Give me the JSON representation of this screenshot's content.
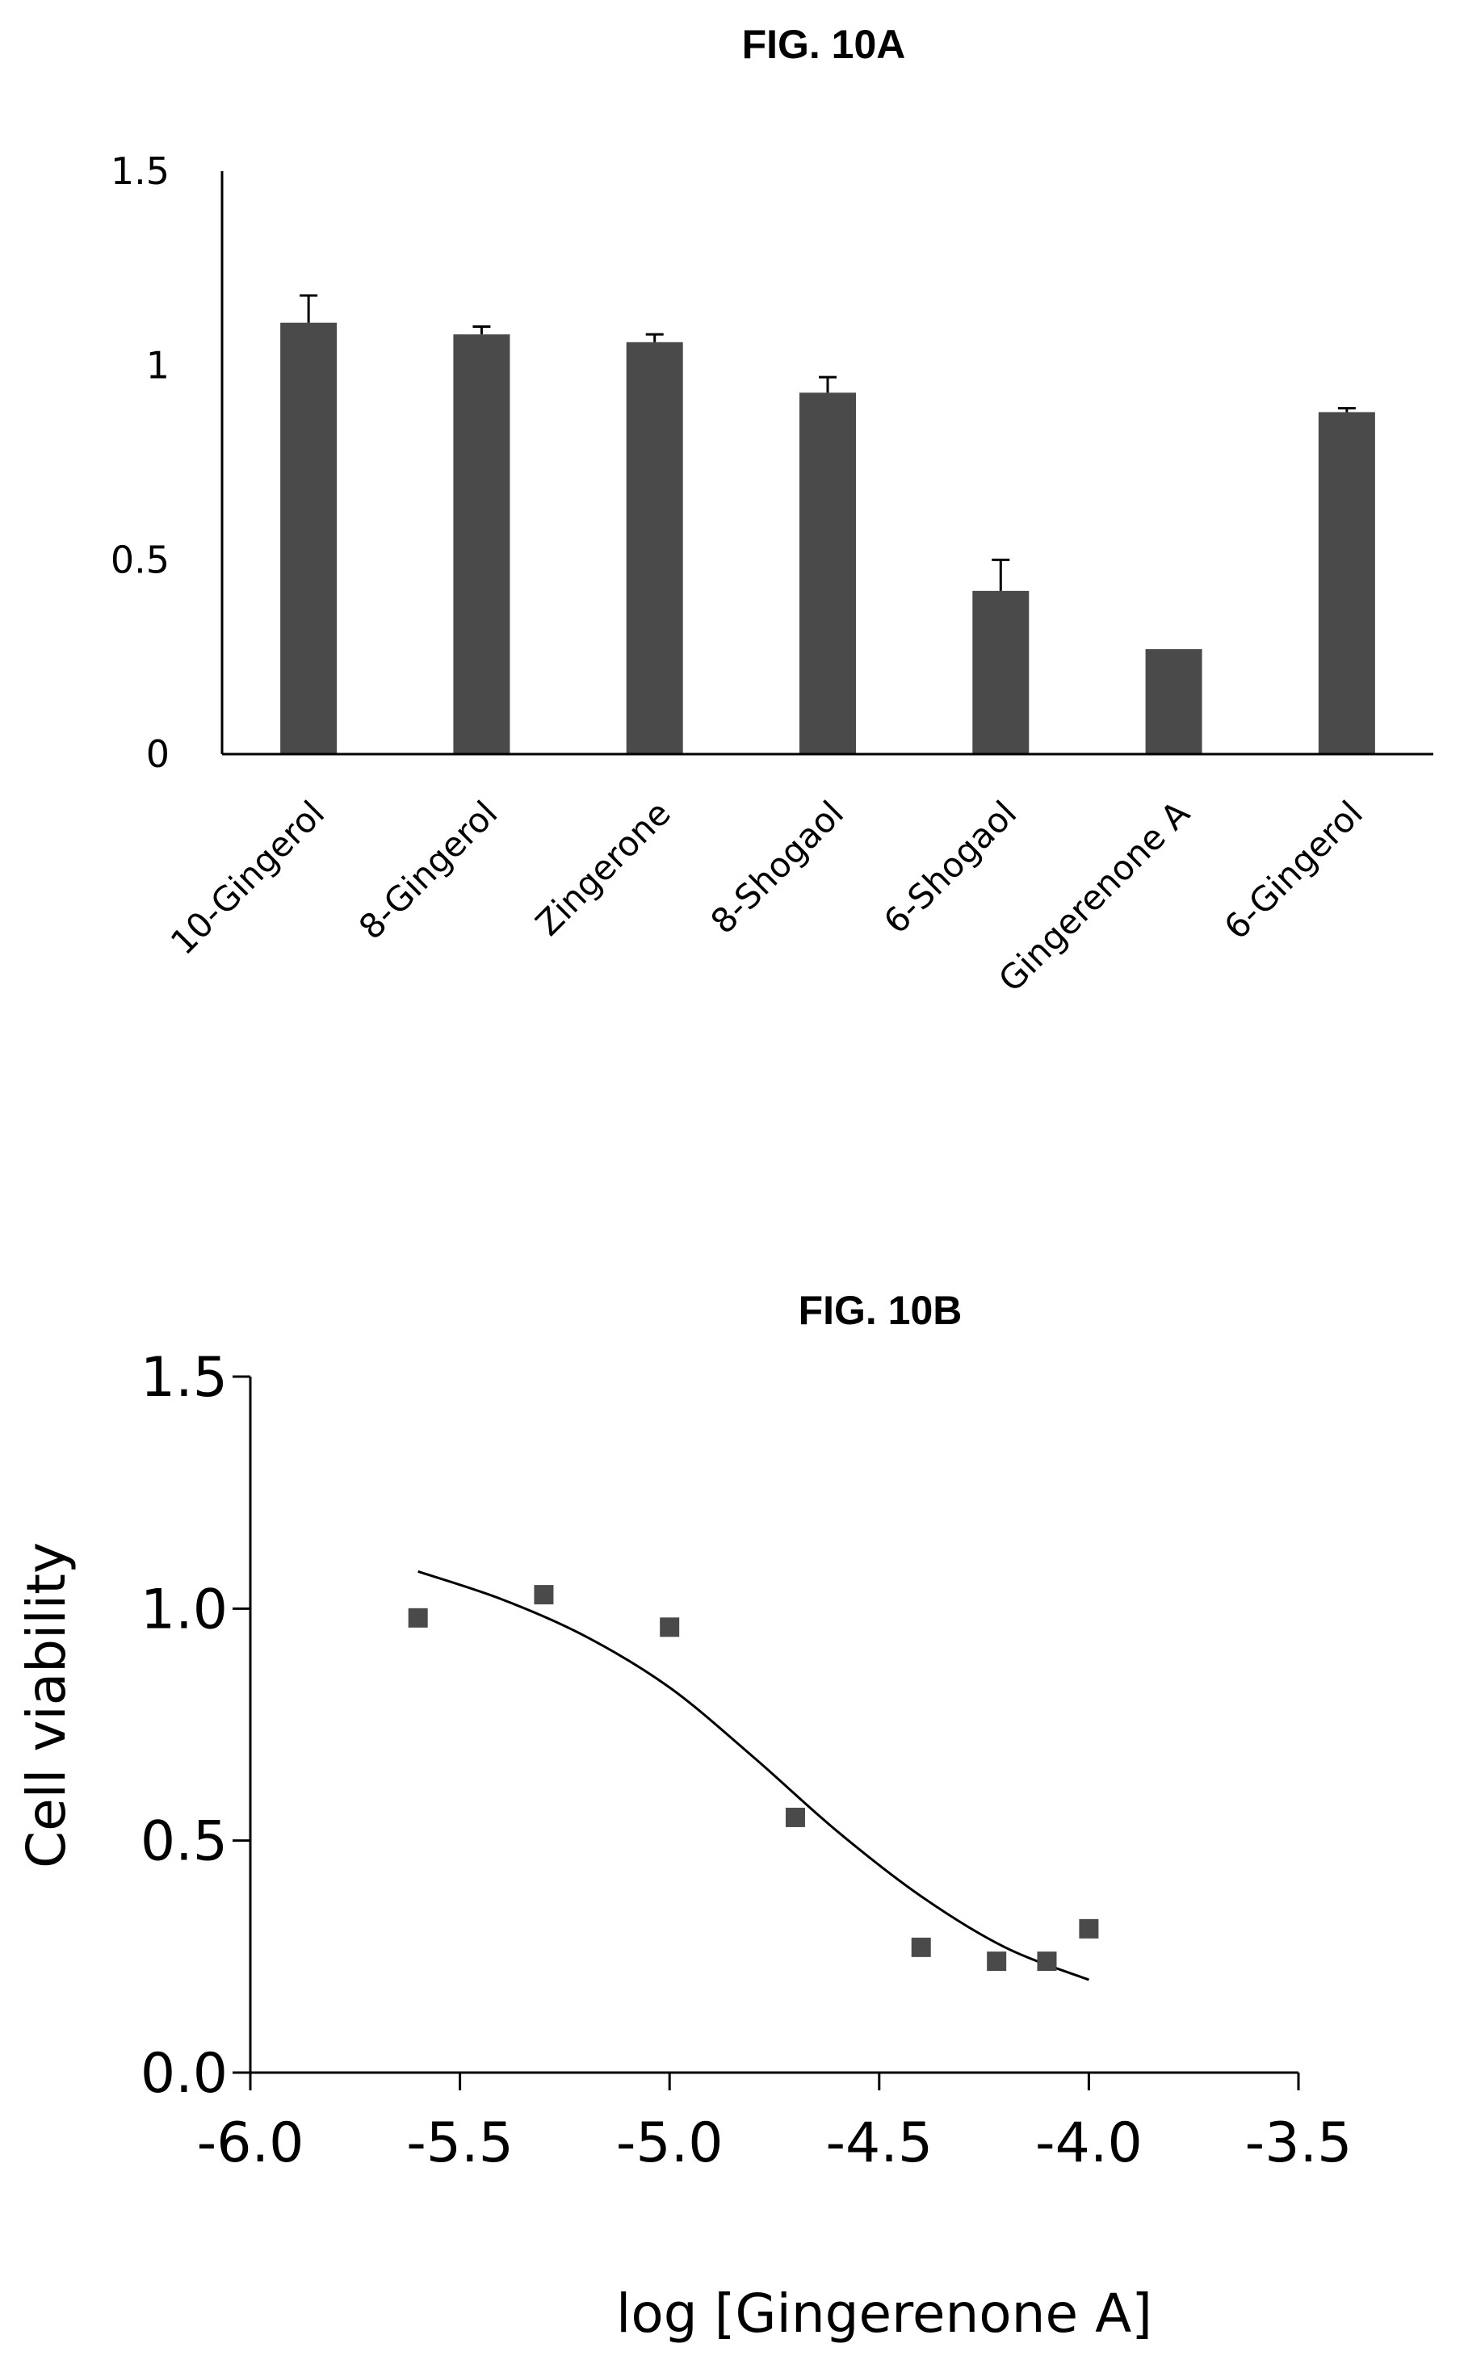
{
  "chart_data": [
    {
      "type": "bar",
      "title": "FIG. 10A",
      "xlabel": "",
      "ylabel": "",
      "ylim": [
        0,
        1.5
      ],
      "yticks": [
        "0",
        "0.5",
        "1",
        "1.5"
      ],
      "categories": [
        "10-Gingerol",
        "8-Gingerol",
        "Zingerone",
        "8-Shogaol",
        "6-Shogaol",
        "Gingerenone A",
        "6-Gingerol"
      ],
      "values": [
        1.11,
        1.08,
        1.06,
        0.93,
        0.42,
        0.27,
        0.88
      ],
      "errors": [
        0.07,
        0.02,
        0.02,
        0.04,
        0.08,
        0.0,
        0.01
      ],
      "colors": {
        "bar": "#4a4a4a"
      }
    },
    {
      "type": "scatter",
      "title": "FIG. 10B",
      "xlabel": "log [Gingerenone A]",
      "ylabel": "Cell viability",
      "xlim": [
        -6.0,
        -3.5
      ],
      "ylim": [
        0.0,
        1.5
      ],
      "xticks": [
        "-6.0",
        "-5.5",
        "-5.0",
        "-4.5",
        "-4.0",
        "-3.5"
      ],
      "yticks": [
        "0.0",
        "0.5",
        "1.0",
        "1.5"
      ],
      "points": {
        "x": [
          -5.6,
          -5.3,
          -5.0,
          -4.7,
          -4.4,
          -4.22,
          -4.1,
          -4.0
        ],
        "y": [
          0.98,
          1.03,
          0.96,
          0.55,
          0.27,
          0.24,
          0.24,
          0.31
        ]
      },
      "fit_curve": {
        "x": [
          -5.6,
          -5.4,
          -5.2,
          -5.0,
          -4.8,
          -4.6,
          -4.4,
          -4.2,
          -4.0
        ],
        "y": [
          1.08,
          1.02,
          0.94,
          0.83,
          0.68,
          0.52,
          0.38,
          0.27,
          0.2
        ]
      },
      "colors": {
        "point": "#4a4a4a",
        "curve": "#000000"
      }
    }
  ]
}
